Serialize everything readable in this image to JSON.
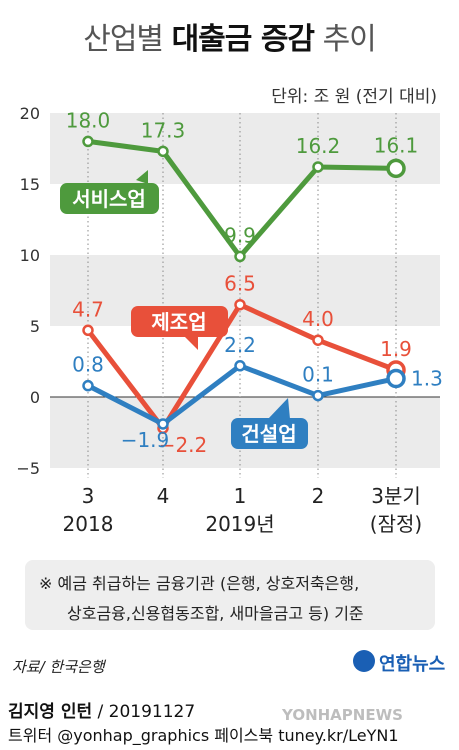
{
  "header": {
    "title_light": "산업별",
    "title_bold": "대출금 증감",
    "title_end": "추이",
    "unit": "단위: 조 원 (전기 대비)"
  },
  "chart_data": {
    "type": "line",
    "categories": [
      "3",
      "4",
      "1",
      "2",
      "3분기"
    ],
    "category_sub": [
      "",
      "",
      "",
      "",
      "(잠정)"
    ],
    "year_labels": [
      {
        "label": "2018",
        "at": 0
      },
      {
        "label": "2019년",
        "at": 2
      }
    ],
    "yticks": [
      20,
      15,
      10,
      5,
      0,
      -5
    ],
    "ylim": [
      -5,
      20
    ],
    "series": [
      {
        "name": "서비스업",
        "color": "#4e9a3d",
        "values": [
          18.0,
          17.3,
          9.9,
          16.2,
          16.1
        ],
        "labels": [
          "18.0",
          "17.3",
          "9.9",
          "16.2",
          "16.1"
        ]
      },
      {
        "name": "제조업",
        "color": "#e8503a",
        "values": [
          4.7,
          -2.2,
          6.5,
          4.0,
          1.9
        ],
        "labels": [
          "4.7",
          "−2.2",
          "6.5",
          "4.0",
          "1.9"
        ]
      },
      {
        "name": "건설업",
        "color": "#2f7fc1",
        "values": [
          0.8,
          -1.9,
          2.2,
          0.1,
          1.3
        ],
        "labels": [
          "0.8",
          "−1.9",
          "2.2",
          "0.1",
          "1.3"
        ]
      }
    ]
  },
  "note": {
    "line1": "※ 예금 취급하는 금융기관 (은행, 상호저축은행,",
    "line2": "상호금융,신용협동조합, 새마을금고 등) 기준"
  },
  "footer": {
    "source": "자료/ 한국은행",
    "brand": "연합뉴스",
    "author": "김지영 인턴",
    "date": " / 20191127",
    "social": "트위터 @yonhap_graphics  페이스북 tuney.kr/LeYN1",
    "watermark": "YONHAPNEWS"
  }
}
